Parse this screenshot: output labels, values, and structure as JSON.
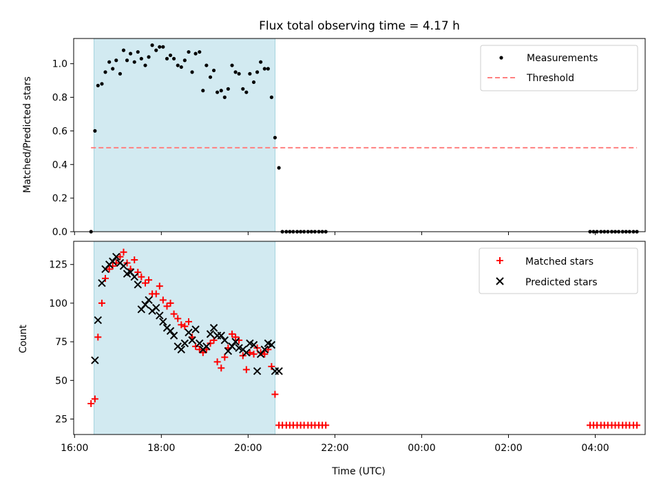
{
  "chart_data": [
    {
      "type": "scatter",
      "title": "Flux total observing time = 4.17 h",
      "xlabel": "",
      "ylabel": "Matched/Predicted stars",
      "x_unit": "hours since 16:00 UTC",
      "xlim": [
        15.98,
        29.15
      ],
      "ylim": [
        0.0,
        1.15
      ],
      "yticks": [
        0.0,
        0.2,
        0.4,
        0.6,
        0.8,
        1.0
      ],
      "ytick_labels": [
        "0.0",
        "0.2",
        "0.4",
        "0.6",
        "0.8",
        "1.0"
      ],
      "grid": false,
      "legend": "top-right",
      "shaded_region": {
        "x_start": 16.45,
        "x_end": 20.62,
        "color": "#add8e6"
      },
      "series": [
        {
          "name": "Measurements",
          "marker": "dot",
          "color": "#000000",
          "x": [
            16.38,
            16.47,
            16.54,
            16.63,
            16.71,
            16.8,
            16.88,
            16.96,
            17.05,
            17.13,
            17.21,
            17.29,
            17.38,
            17.46,
            17.54,
            17.63,
            17.71,
            17.79,
            17.88,
            17.96,
            18.04,
            18.13,
            18.21,
            18.29,
            18.38,
            18.46,
            18.54,
            18.63,
            18.71,
            18.79,
            18.88,
            18.96,
            19.04,
            19.13,
            19.21,
            19.29,
            19.38,
            19.46,
            19.54,
            19.63,
            19.71,
            19.79,
            19.88,
            19.96,
            20.04,
            20.13,
            20.21,
            20.29,
            20.38,
            20.46,
            20.54,
            20.62,
            20.71,
            20.79,
            20.88,
            20.96,
            21.04,
            21.13,
            21.21,
            21.29,
            21.38,
            21.46,
            21.54,
            21.63,
            21.71,
            21.79,
            27.88,
            27.96,
            28.04,
            28.13,
            28.21,
            28.29,
            28.38,
            28.46,
            28.54,
            28.63,
            28.71,
            28.79,
            28.88,
            28.96
          ],
          "y": [
            0.0,
            0.6,
            0.87,
            0.88,
            0.95,
            1.01,
            0.97,
            1.02,
            0.94,
            1.08,
            1.02,
            1.06,
            1.01,
            1.07,
            1.03,
            0.99,
            1.04,
            1.11,
            1.08,
            1.1,
            1.1,
            1.03,
            1.05,
            1.03,
            0.99,
            0.98,
            1.02,
            1.07,
            0.95,
            1.06,
            1.07,
            0.84,
            0.99,
            0.92,
            0.96,
            0.83,
            0.84,
            0.8,
            0.85,
            0.99,
            0.95,
            0.94,
            0.85,
            0.83,
            0.94,
            0.89,
            0.95,
            1.01,
            0.97,
            0.97,
            0.8,
            0.56,
            0.38,
            0.0,
            0.0,
            0.0,
            0.0,
            0.0,
            0.0,
            0.0,
            0.0,
            0.0,
            0.0,
            0.0,
            0.0,
            0.0,
            0.0,
            0.0,
            0.0,
            0.0,
            0.0,
            0.0,
            0.0,
            0.0,
            0.0,
            0.0,
            0.0,
            0.0,
            0.0,
            0.0
          ]
        },
        {
          "name": "Threshold",
          "marker": "dashed-line",
          "color": "#ff7f7f",
          "x": [
            16.38,
            28.96
          ],
          "y": [
            0.5,
            0.5
          ]
        }
      ]
    },
    {
      "type": "scatter",
      "title": "",
      "xlabel": "Time (UTC)",
      "ylabel": "Count",
      "x_unit": "hours since 16:00 UTC",
      "xlim": [
        15.98,
        29.15
      ],
      "ylim": [
        15,
        140
      ],
      "xticks": [
        16,
        18,
        20,
        22,
        24,
        26,
        28
      ],
      "xtick_labels": [
        "16:00",
        "18:00",
        "20:00",
        "22:00",
        "00:00",
        "02:00",
        "04:00"
      ],
      "yticks": [
        25,
        50,
        75,
        100,
        125
      ],
      "ytick_labels": [
        "25",
        "50",
        "75",
        "100",
        "125"
      ],
      "grid": false,
      "legend": "top-right",
      "shaded_region": {
        "x_start": 16.45,
        "x_end": 20.62,
        "color": "#add8e6"
      },
      "series": [
        {
          "name": "Matched stars",
          "marker": "plus",
          "color": "#ff0000",
          "x": [
            16.38,
            16.47,
            16.54,
            16.63,
            16.71,
            16.8,
            16.88,
            16.96,
            17.05,
            17.13,
            17.21,
            17.29,
            17.38,
            17.46,
            17.54,
            17.63,
            17.71,
            17.79,
            17.88,
            17.96,
            18.04,
            18.13,
            18.21,
            18.29,
            18.38,
            18.46,
            18.54,
            18.63,
            18.71,
            18.79,
            18.88,
            18.96,
            19.04,
            19.13,
            19.21,
            19.29,
            19.38,
            19.46,
            19.54,
            19.63,
            19.71,
            19.79,
            19.88,
            19.96,
            20.04,
            20.13,
            20.21,
            20.29,
            20.38,
            20.46,
            20.54,
            20.62,
            20.71,
            20.79,
            20.88,
            20.96,
            21.04,
            21.13,
            21.21,
            21.29,
            21.38,
            21.46,
            21.54,
            21.63,
            21.71,
            21.79,
            27.88,
            27.96,
            28.04,
            28.13,
            28.21,
            28.29,
            28.38,
            28.46,
            28.54,
            28.63,
            28.71,
            28.79,
            28.88,
            28.96
          ],
          "y": [
            35,
            38,
            78,
            100,
            116,
            122,
            124,
            126,
            130,
            133,
            126,
            122,
            128,
            120,
            117,
            113,
            115,
            106,
            106,
            111,
            102,
            98,
            100,
            93,
            90,
            86,
            85,
            88,
            78,
            72,
            70,
            68,
            70,
            74,
            76,
            62,
            58,
            65,
            71,
            80,
            78,
            76,
            66,
            57,
            68,
            67,
            71,
            68,
            67,
            70,
            59,
            41,
            21,
            21,
            21,
            21,
            21,
            21,
            21,
            21,
            21,
            21,
            21,
            21,
            21,
            21,
            21,
            21,
            21,
            21,
            21,
            21,
            21,
            21,
            21,
            21,
            21,
            21,
            21,
            21
          ]
        },
        {
          "name": "Predicted stars",
          "marker": "x",
          "color": "#000000",
          "x": [
            16.47,
            16.54,
            16.63,
            16.71,
            16.8,
            16.88,
            16.96,
            17.05,
            17.13,
            17.21,
            17.29,
            17.38,
            17.46,
            17.54,
            17.63,
            17.71,
            17.79,
            17.88,
            17.96,
            18.04,
            18.13,
            18.21,
            18.29,
            18.38,
            18.46,
            18.54,
            18.63,
            18.71,
            18.79,
            18.88,
            18.96,
            19.04,
            19.13,
            19.21,
            19.29,
            19.38,
            19.46,
            19.54,
            19.63,
            19.71,
            19.79,
            19.88,
            19.96,
            20.04,
            20.13,
            20.21,
            20.29,
            20.38,
            20.46,
            20.54,
            20.62,
            20.71
          ],
          "y": [
            63,
            89,
            113,
            122,
            125,
            127,
            130,
            126,
            124,
            119,
            120,
            117,
            112,
            96,
            99,
            102,
            95,
            97,
            92,
            88,
            84,
            82,
            79,
            72,
            70,
            74,
            81,
            76,
            83,
            74,
            70,
            72,
            80,
            84,
            79,
            79,
            76,
            69,
            72,
            75,
            71,
            70,
            68,
            74,
            73,
            56,
            67,
            70,
            74,
            73,
            56,
            56
          ]
        }
      ]
    }
  ]
}
